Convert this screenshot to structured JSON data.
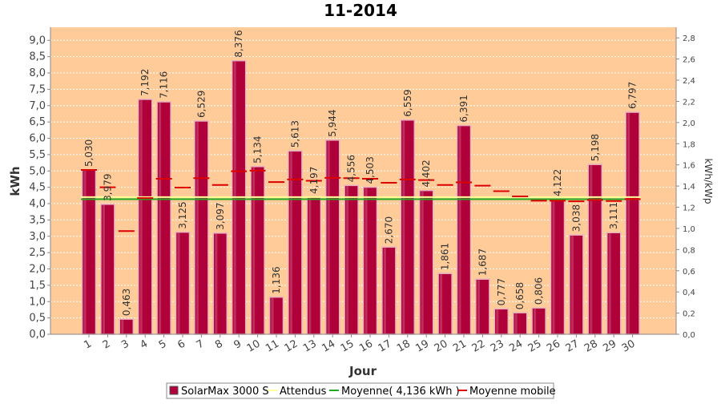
{
  "chart_data": {
    "type": "bar",
    "title": "11-2014",
    "xlabel": "Jour",
    "ylabel": "kWh",
    "y2label": "kWh/kWp",
    "ylim": [
      0,
      9.4
    ],
    "y2lim": [
      0,
      2.9
    ],
    "yticks": [
      "0,0",
      "0,5",
      "1,0",
      "1,5",
      "2,0",
      "2,5",
      "3,0",
      "3,5",
      "4,0",
      "4,5",
      "5,0",
      "5,5",
      "6,0",
      "6,5",
      "7,0",
      "7,5",
      "8,0",
      "8,5",
      "9,0"
    ],
    "y2ticks": [
      "0,0",
      "0,2",
      "0,4",
      "0,6",
      "0,8",
      "1,0",
      "1,2",
      "1,4",
      "1,6",
      "1,8",
      "2,0",
      "2,2",
      "2,4",
      "2,6",
      "2,8"
    ],
    "categories": [
      "1",
      "2",
      "3",
      "4",
      "5",
      "6",
      "7",
      "8",
      "9",
      "10",
      "11",
      "12",
      "13",
      "14",
      "15",
      "16",
      "17",
      "18",
      "19",
      "20",
      "21",
      "22",
      "23",
      "24",
      "25",
      "26",
      "27",
      "28",
      "29",
      "30"
    ],
    "data_labels": [
      "5,030",
      "3,979",
      "0,463",
      "7,192",
      "7,116",
      "3,125",
      "6,529",
      "3,097",
      "8,376",
      "5,134",
      "1,136",
      "5,613",
      "4,197",
      "5,944",
      "4,556",
      "4,503",
      "2,670",
      "6,559",
      "4,402",
      "1,861",
      "6,391",
      "1,687",
      "0,777",
      "0,658",
      "0,806",
      "4,122",
      "3,038",
      "5,198",
      "3,111",
      "6,797"
    ],
    "series": [
      {
        "name": "SolarMax 3000 S",
        "kind": "bar",
        "color": "#b0003a",
        "values": [
          5.03,
          3.979,
          0.463,
          7.192,
          7.116,
          3.125,
          6.529,
          3.097,
          8.376,
          5.134,
          1.136,
          5.613,
          4.197,
          5.944,
          4.556,
          4.503,
          2.67,
          6.559,
          4.402,
          1.861,
          6.391,
          1.687,
          0.777,
          0.658,
          0.806,
          4.122,
          3.038,
          5.198,
          3.111,
          6.797
        ]
      },
      {
        "name": "Attendus",
        "kind": "line",
        "color": "#ffff99",
        "values": [
          4.2,
          4.2,
          4.2,
          4.2,
          4.2,
          4.2,
          4.2,
          4.2,
          4.2,
          4.2,
          4.2,
          4.2,
          4.2,
          4.2,
          4.2,
          4.2,
          4.2,
          4.2,
          4.2,
          4.2,
          4.2,
          4.2,
          4.2,
          4.2,
          4.2,
          4.2,
          4.2,
          4.2,
          4.2,
          4.2
        ]
      },
      {
        "name": "Moyenne( 4,136 kWh )",
        "kind": "line",
        "color": "#22aa22",
        "values": [
          4.136,
          4.136,
          4.136,
          4.136,
          4.136,
          4.136,
          4.136,
          4.136,
          4.136,
          4.136,
          4.136,
          4.136,
          4.136,
          4.136,
          4.136,
          4.136,
          4.136,
          4.136,
          4.136,
          4.136,
          4.136,
          4.136,
          4.136,
          4.136,
          4.136,
          4.136,
          4.136,
          4.136,
          4.136,
          4.136
        ]
      },
      {
        "name": "Moyenne mobile",
        "kind": "dash",
        "color": "#dd0000",
        "values": [
          5.03,
          4.5,
          3.16,
          4.17,
          4.76,
          4.49,
          4.78,
          4.57,
          4.99,
          5.01,
          4.66,
          4.74,
          4.7,
          4.79,
          4.78,
          4.76,
          4.64,
          4.74,
          4.72,
          4.57,
          4.65,
          4.55,
          4.38,
          4.22,
          4.09,
          4.09,
          4.07,
          4.11,
          4.08,
          4.14
        ]
      }
    ],
    "legend": {
      "position": "bottom",
      "entries": [
        "SolarMax 3000 S",
        "Attendus",
        "Moyenne( 4,136 kWh )",
        "Moyenne mobile"
      ]
    },
    "colors": {
      "plot_background": "#ffcc99",
      "bar": "#b0003a",
      "grid": "#ffffff"
    },
    "grid": true
  }
}
